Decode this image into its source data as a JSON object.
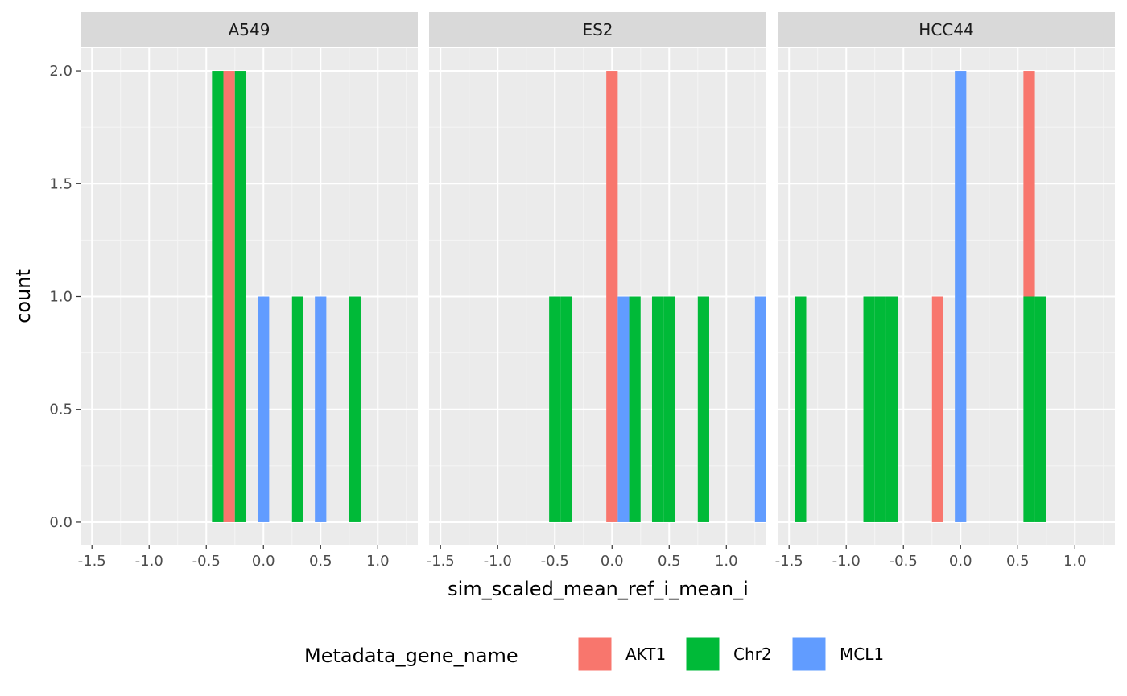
{
  "chart_data": {
    "type": "bar",
    "subtype": "faceted-histogram",
    "xlabel": "sim_scaled_mean_ref_i_mean_i",
    "ylabel": "count",
    "xlim": [
      -1.6,
      1.35
    ],
    "ylim": [
      -0.1,
      2.1
    ],
    "xticks": [
      "-1.5",
      "-1.0",
      "-0.5",
      "0.0",
      "0.5",
      "1.0"
    ],
    "yticks": [
      "0.0",
      "0.5",
      "1.0",
      "1.5",
      "2.0"
    ],
    "bin_width": 0.1,
    "legend": {
      "title": "Metadata_gene_name",
      "position": "bottom",
      "items": [
        {
          "label": "AKT1",
          "color": "#F8766D"
        },
        {
          "label": "Chr2",
          "color": "#00BA38"
        },
        {
          "label": "MCL1",
          "color": "#619CFF"
        }
      ]
    },
    "facets": [
      {
        "label": "A549",
        "bars": [
          {
            "x": -0.4,
            "count": 2,
            "group": "Chr2"
          },
          {
            "x": -0.3,
            "count": 2,
            "group": "AKT1"
          },
          {
            "x": -0.2,
            "count": 2,
            "group": "Chr2"
          },
          {
            "x": 0.0,
            "count": 1,
            "group": "MCL1"
          },
          {
            "x": 0.3,
            "count": 1,
            "group": "Chr2"
          },
          {
            "x": 0.5,
            "count": 1,
            "group": "MCL1"
          },
          {
            "x": 0.8,
            "count": 1,
            "group": "Chr2"
          }
        ]
      },
      {
        "label": "ES2",
        "bars": [
          {
            "x": -0.5,
            "count": 1,
            "group": "Chr2"
          },
          {
            "x": -0.4,
            "count": 1,
            "group": "Chr2"
          },
          {
            "x": 0.0,
            "count": 2,
            "group": "AKT1"
          },
          {
            "x": 0.1,
            "count": 1,
            "group": "MCL1"
          },
          {
            "x": 0.2,
            "count": 1,
            "group": "Chr2"
          },
          {
            "x": 0.4,
            "count": 1,
            "group": "Chr2"
          },
          {
            "x": 0.5,
            "count": 1,
            "group": "Chr2"
          },
          {
            "x": 0.8,
            "count": 1,
            "group": "Chr2"
          },
          {
            "x": 1.3,
            "count": 1,
            "group": "MCL1"
          }
        ]
      },
      {
        "label": "HCC44",
        "bars": [
          {
            "x": -1.4,
            "count": 1,
            "group": "Chr2"
          },
          {
            "x": -0.8,
            "count": 1,
            "group": "Chr2"
          },
          {
            "x": -0.7,
            "count": 1,
            "group": "Chr2"
          },
          {
            "x": -0.6,
            "count": 1,
            "group": "Chr2"
          },
          {
            "x": -0.2,
            "count": 1,
            "group": "AKT1"
          },
          {
            "x": 0.0,
            "count": 2,
            "group": "MCL1"
          },
          {
            "x": 0.6,
            "count": 1,
            "group": "Chr2"
          },
          {
            "x": 0.6,
            "count": 1,
            "group": "AKT1",
            "stack_on": 1
          },
          {
            "x": 0.7,
            "count": 1,
            "group": "Chr2"
          }
        ]
      }
    ]
  }
}
